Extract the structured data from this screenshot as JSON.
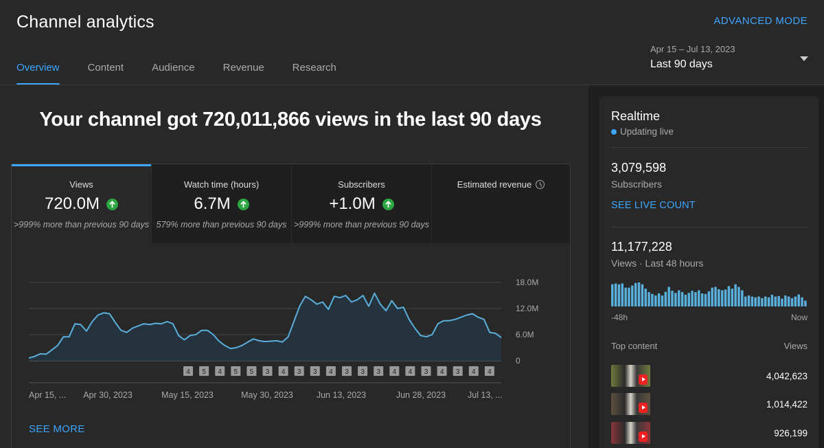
{
  "header": {
    "title": "Channel analytics",
    "advanced_mode": "ADVANCED MODE",
    "tabs": [
      {
        "label": "Overview",
        "active": true
      },
      {
        "label": "Content",
        "active": false
      },
      {
        "label": "Audience",
        "active": false
      },
      {
        "label": "Revenue",
        "active": false
      },
      {
        "label": "Research",
        "active": false
      }
    ],
    "date_range": "Apr 15 – Jul 13, 2023",
    "date_label": "Last 90 days"
  },
  "main": {
    "headline": "Your channel got 720,011,866 views in the last 90 days",
    "metrics": [
      {
        "label": "Views",
        "value": "720.0M",
        "compare": ">999% more than previous 90 days",
        "trend": "up"
      },
      {
        "label": "Watch time (hours)",
        "value": "6.7M",
        "compare": "579% more than previous 90 days",
        "trend": "up"
      },
      {
        "label": "Subscribers",
        "value": "+1.0M",
        "compare": ">999% more than previous 90 days",
        "trend": "up"
      },
      {
        "label": "Estimated revenue",
        "value": "",
        "compare": "",
        "trend": ""
      }
    ],
    "see_more": "SEE MORE"
  },
  "chart_data": {
    "type": "area",
    "series": [
      {
        "name": "Views",
        "values": [
          0.6,
          1.0,
          1.6,
          1.5,
          2.5,
          3.5,
          5.5,
          5.5,
          8.5,
          8.3,
          6.8,
          9.0,
          10.5,
          11.0,
          10.8,
          8.8,
          7.0,
          6.5,
          7.5,
          8.0,
          8.5,
          8.3,
          8.6,
          8.5,
          9.0,
          8.5,
          5.8,
          4.8,
          5.8,
          6.0,
          7.0,
          7.0,
          6.0,
          4.5,
          3.5,
          2.8,
          3.0,
          3.5,
          4.3,
          5.0,
          4.6,
          4.4,
          4.5,
          4.6,
          4.3,
          5.5,
          9.0,
          12.5,
          14.8,
          14.0,
          13.0,
          13.5,
          11.8,
          14.8,
          14.5,
          15.0,
          13.5,
          14.0,
          15.0,
          12.5,
          15.5,
          13.0,
          11.5,
          13.8,
          12.0,
          12.3,
          9.5,
          7.5,
          5.8,
          5.5,
          6.0,
          8.5,
          9.2,
          9.2,
          9.5,
          10.0,
          10.5,
          10.8,
          10.0,
          9.5,
          6.5,
          6.3,
          5.3
        ]
      }
    ],
    "x_ticks": [
      "Apr 15, ...",
      "Apr 30, 2023",
      "May 15, 2023",
      "May 30, 2023",
      "Jun 13, 2023",
      "Jun 28, 2023",
      "Jul 13, ..."
    ],
    "y_ticks": [
      "0",
      "6.0M",
      "12.0M",
      "18.0M"
    ],
    "ylim": [
      0,
      18
    ],
    "video_markers": [
      "4",
      "5",
      "4",
      "5",
      "5",
      "3",
      "4",
      "3",
      "3",
      "4",
      "3",
      "3",
      "3",
      "4",
      "4",
      "3",
      "4",
      "3",
      "4",
      "4"
    ],
    "grid": true
  },
  "realtime": {
    "title": "Realtime",
    "status": "Updating live",
    "subscribers_value": "3,079,598",
    "subscribers_label": "Subscribers",
    "see_live_count": "SEE LIVE COUNT",
    "views_value": "11,177,228",
    "views_label": "Views · Last 48 hours",
    "axis_start": "-48h",
    "axis_end": "Now",
    "bars": [
      0.85,
      0.88,
      0.85,
      0.88,
      0.72,
      0.72,
      0.8,
      0.9,
      0.92,
      0.85,
      0.68,
      0.55,
      0.48,
      0.42,
      0.5,
      0.42,
      0.56,
      0.75,
      0.6,
      0.52,
      0.62,
      0.55,
      0.45,
      0.52,
      0.6,
      0.55,
      0.62,
      0.5,
      0.48,
      0.58,
      0.72,
      0.75,
      0.66,
      0.62,
      0.65,
      0.78,
      0.68,
      0.85,
      0.75,
      0.62,
      0.38,
      0.42,
      0.38,
      0.35,
      0.38,
      0.32,
      0.38,
      0.35,
      0.45,
      0.38,
      0.4,
      0.3,
      0.42,
      0.38,
      0.32,
      0.38,
      0.46,
      0.35,
      0.22
    ],
    "top_content_label": "Top content",
    "views_col_label": "Views",
    "top_content": [
      {
        "views": "4,042,623",
        "thumb_color": "#6d7a3a"
      },
      {
        "views": "1,014,422",
        "thumb_color": "#5e5040"
      },
      {
        "views": "926,199",
        "thumb_color": "#8a3538"
      }
    ]
  }
}
